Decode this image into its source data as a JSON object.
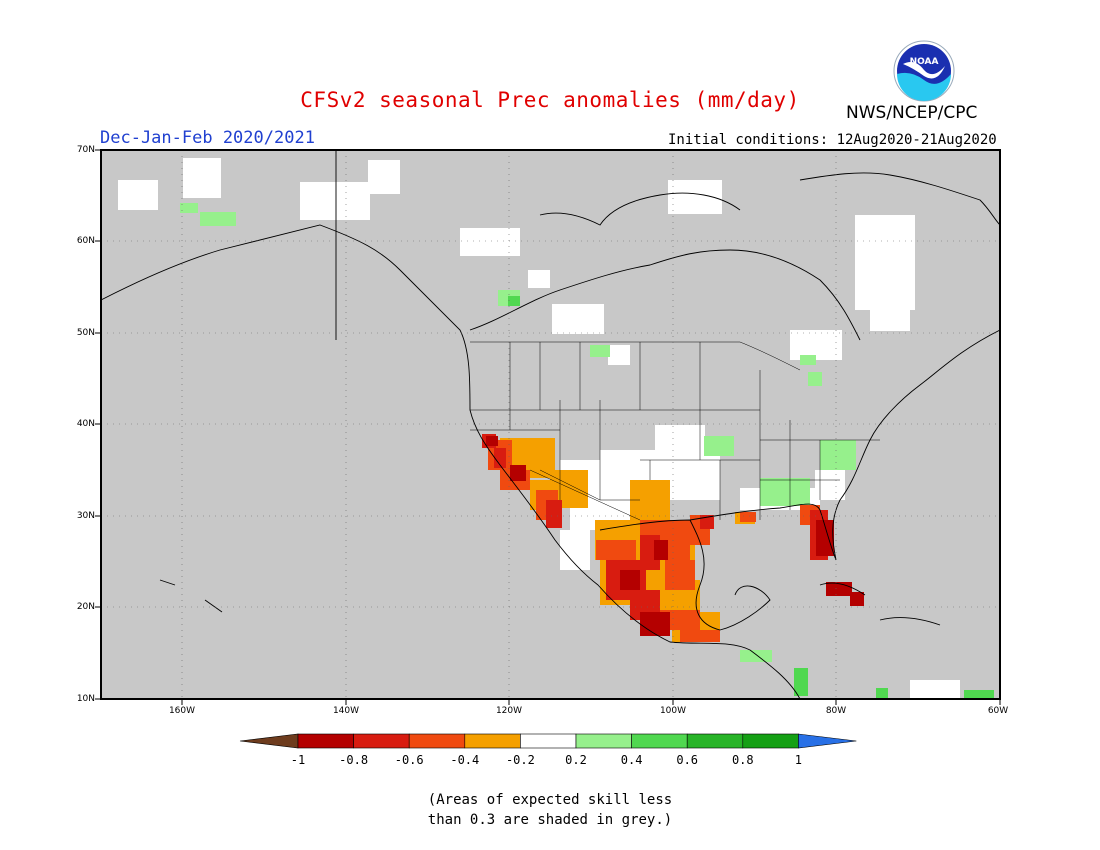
{
  "title": "CFSv2 seasonal Prec anomalies (mm/day)",
  "agency": "NWS/NCEP/CPC",
  "logo_text": "NOAA",
  "season": "Dec-Jan-Feb 2020/2021",
  "initial_conditions": "Initial conditions: 12Aug2020-21Aug2020",
  "lat_labels": [
    "70N",
    "60N",
    "50N",
    "40N",
    "30N",
    "20N",
    "10N"
  ],
  "lon_labels": [
    "160W",
    "140W",
    "120W",
    "100W",
    "80W",
    "60W"
  ],
  "colorbar": {
    "labels": [
      "-1",
      "-0.8",
      "-0.6",
      "-0.4",
      "-0.2",
      "0.2",
      "0.4",
      "0.6",
      "0.8",
      "1"
    ],
    "colors": [
      "#6e3c1e",
      "#b40000",
      "#d81c10",
      "#f04a10",
      "#f5a000",
      "#ffffff",
      "#96f08c",
      "#50d850",
      "#28b428",
      "#14a014",
      "#2870e6"
    ]
  },
  "note_line1": "(Areas of expected skill less",
  "note_line2": "than 0.3 are shaded in grey.)",
  "colors": {
    "ocean_land_grey": "#c8c8c8",
    "no_skill_white": "#ffffff",
    "title_red": "#e00000",
    "season_blue": "#2040d0"
  }
}
